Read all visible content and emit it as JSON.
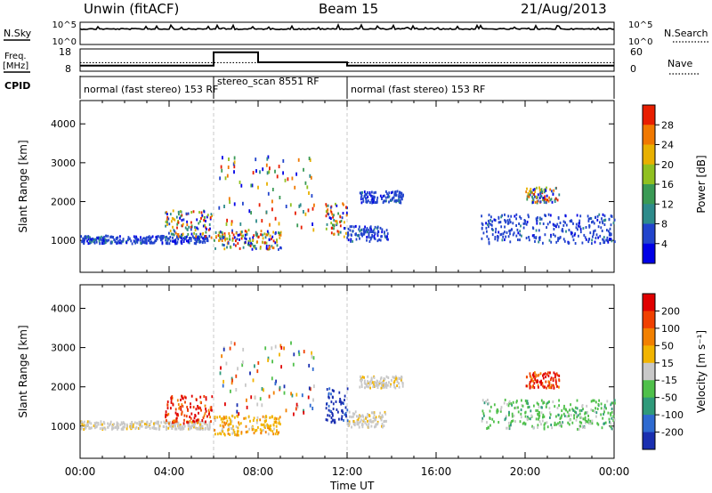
{
  "header": {
    "station": "Unwin (fitACF)",
    "beam": "Beam 15",
    "date": "21/Aug/2013"
  },
  "top_panels": {
    "nsky_label": "N.Sky",
    "nsky_ticks": [
      "10^5",
      "10^0"
    ],
    "nsearch_label": "N.Search",
    "nsearch_ticks": [
      "10^5",
      "10^0"
    ],
    "freq_label": "Freq.",
    "freq_unit": "[MHz]",
    "freq_ticks": [
      "18",
      "8"
    ],
    "nave_label": "Nave",
    "nave_ticks": [
      "60",
      "0"
    ],
    "cpid_label": "CPID",
    "modes": [
      {
        "name": "normal (fast stereo) 153 RF",
        "start_h": 0,
        "end_h": 6
      },
      {
        "name": "stereo_scan 8551 RF",
        "start_h": 6,
        "end_h": 12
      },
      {
        "name": "normal (fast stereo) 153 RF",
        "start_h": 12,
        "end_h": 24
      }
    ],
    "freq_steps": [
      {
        "start_h": 0,
        "end_h": 6,
        "value": 10.5
      },
      {
        "start_h": 6,
        "end_h": 8,
        "value": 16.5
      },
      {
        "start_h": 8,
        "end_h": 12,
        "value": 12
      },
      {
        "start_h": 12,
        "end_h": 24,
        "value": 10.5
      }
    ],
    "nave_level": 23
  },
  "chart_data": [
    {
      "type": "heatmap",
      "parameter": "Power",
      "colorbar_label": "Power [dB]",
      "colorbar_ticks": [
        "28",
        "24",
        "20",
        "16",
        "12",
        "8",
        "4"
      ],
      "colorbar_colors": [
        "#0000e6",
        "#2244cc",
        "#2e8b8b",
        "#3a9a55",
        "#90c020",
        "#e8b000",
        "#f07800",
        "#e81e00"
      ],
      "ylabel": "Slant Range [km]",
      "y_ticks": [
        1000,
        2000,
        3000,
        4000
      ],
      "ylim": [
        180,
        4600
      ],
      "xlim": [
        0,
        24
      ],
      "features": [
        {
          "t0": 0.0,
          "t1": 5.8,
          "r0": 950,
          "r1": 1150,
          "cls": "low"
        },
        {
          "t0": 3.8,
          "t1": 5.9,
          "r0": 1100,
          "r1": 1800,
          "cls": "mixed"
        },
        {
          "t0": 6.0,
          "t1": 9.0,
          "r0": 800,
          "r1": 1300,
          "cls": "mixed"
        },
        {
          "t0": 6.2,
          "t1": 10.5,
          "r0": 1300,
          "r1": 3200,
          "cls": "sparse"
        },
        {
          "t0": 11.0,
          "t1": 12.0,
          "r0": 1100,
          "r1": 2000,
          "cls": "mixed"
        },
        {
          "t0": 12.0,
          "t1": 13.8,
          "r0": 1000,
          "r1": 1400,
          "cls": "low"
        },
        {
          "t0": 12.5,
          "t1": 14.5,
          "r0": 2000,
          "r1": 2300,
          "cls": "low"
        },
        {
          "t0": 18.0,
          "t1": 24.0,
          "r0": 950,
          "r1": 1700,
          "cls": "low"
        },
        {
          "t0": 20.0,
          "t1": 21.5,
          "r0": 2000,
          "r1": 2400,
          "cls": "mixed"
        }
      ]
    },
    {
      "type": "heatmap",
      "parameter": "Velocity",
      "colorbar_label": "Velocity [m s⁻¹]",
      "colorbar_ticks": [
        "200",
        "100",
        "50",
        "15",
        "-15",
        "-50",
        "-100",
        "-200"
      ],
      "colorbar_colors": [
        "#1a2fb0",
        "#2e6ad0",
        "#2f9a7a",
        "#4fc04a",
        "#c8c8c8",
        "#f2b400",
        "#f28000",
        "#f04000",
        "#e00000"
      ],
      "ylabel": "Slant Range [km]",
      "y_ticks": [
        1000,
        2000,
        3000,
        4000
      ],
      "ylim": [
        180,
        4600
      ],
      "xlim": [
        0,
        24
      ],
      "features": [
        {
          "t0": 0.0,
          "t1": 5.8,
          "r0": 950,
          "r1": 1150,
          "cls": "grey"
        },
        {
          "t0": 3.8,
          "t1": 5.9,
          "r0": 1100,
          "r1": 1800,
          "cls": "red"
        },
        {
          "t0": 6.0,
          "t1": 9.0,
          "r0": 800,
          "r1": 1300,
          "cls": "yellow"
        },
        {
          "t0": 6.2,
          "t1": 10.5,
          "r0": 1300,
          "r1": 3200,
          "cls": "sparse"
        },
        {
          "t0": 11.0,
          "t1": 12.0,
          "r0": 1100,
          "r1": 2000,
          "cls": "blue"
        },
        {
          "t0": 12.0,
          "t1": 13.8,
          "r0": 1000,
          "r1": 1400,
          "cls": "grey"
        },
        {
          "t0": 12.5,
          "t1": 14.5,
          "r0": 2000,
          "r1": 2300,
          "cls": "grey"
        },
        {
          "t0": 18.0,
          "t1": 24.0,
          "r0": 950,
          "r1": 1700,
          "cls": "green"
        },
        {
          "t0": 20.0,
          "t1": 21.5,
          "r0": 2000,
          "r1": 2400,
          "cls": "red"
        }
      ]
    }
  ],
  "x_axis": {
    "label": "Time UT",
    "ticks": [
      "00:00",
      "04:00",
      "08:00",
      "12:00",
      "16:00",
      "20:00",
      "00:00"
    ]
  }
}
